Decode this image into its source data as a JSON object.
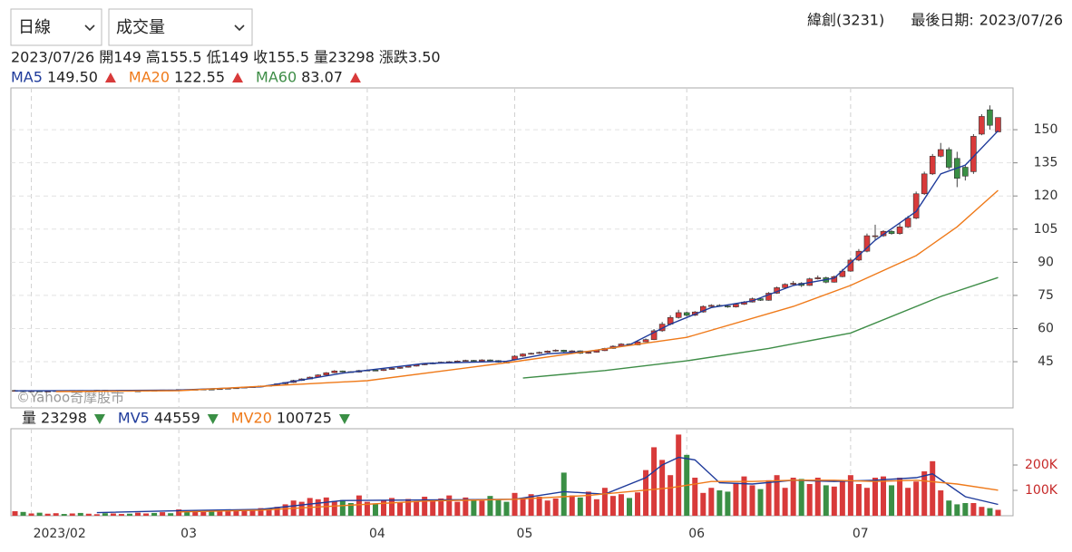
{
  "controls": {
    "period": "日線",
    "indicator": "成交量"
  },
  "header": {
    "stock": "緯創(3231)",
    "last_date_label": "最後日期:",
    "last_date": "2023/07/26"
  },
  "quote": {
    "date": "2023/07/26",
    "fields": [
      {
        "label": "開",
        "value": "149"
      },
      {
        "label": "高",
        "value": "155.5"
      },
      {
        "label": "低",
        "value": "149"
      },
      {
        "label": "收",
        "value": "155.5"
      },
      {
        "label": "量",
        "value": "23298"
      },
      {
        "label": "漲跌",
        "value": "3.50"
      }
    ]
  },
  "chart_data": [
    {
      "type": "candlestick",
      "watermark": "©Yahoo奇摩股市",
      "up_color": "#d83a3a",
      "down_color": "#3a8f45",
      "grid": true,
      "categories": [
        null,
        null,
        "2023/02",
        null,
        null,
        null,
        null,
        null,
        null,
        null,
        null,
        null,
        null,
        null,
        null,
        null,
        null,
        null,
        null,
        null,
        "03",
        null,
        null,
        null,
        null,
        null,
        null,
        null,
        null,
        null,
        null,
        null,
        null,
        null,
        null,
        null,
        null,
        null,
        null,
        null,
        null,
        null,
        null,
        "04",
        null,
        null,
        null,
        null,
        null,
        null,
        null,
        null,
        null,
        null,
        null,
        null,
        null,
        null,
        null,
        null,
        null,
        "05",
        null,
        null,
        null,
        null,
        null,
        null,
        null,
        null,
        null,
        null,
        null,
        null,
        null,
        null,
        null,
        null,
        null,
        null,
        null,
        null,
        "06",
        null,
        null,
        null,
        null,
        null,
        null,
        null,
        null,
        null,
        null,
        null,
        null,
        null,
        null,
        null,
        null,
        null,
        null,
        null,
        "07",
        null,
        null,
        null,
        null,
        null,
        null,
        null,
        null,
        null,
        null,
        null,
        null,
        null,
        null,
        null,
        null,
        null,
        null
      ],
      "open": [
        31.8,
        32,
        31.5,
        31.8,
        31.6,
        31.7,
        31.9,
        31.8,
        32,
        31.7,
        31.9,
        32.1,
        31.8,
        31.9,
        32,
        31.7,
        31.8,
        32,
        31.9,
        32.2,
        32.1,
        32.4,
        32.2,
        32.5,
        32.6,
        32.4,
        32.8,
        33,
        33.2,
        33.5,
        33.7,
        34,
        34.3,
        35,
        35.6,
        36.5,
        37.2,
        38,
        39,
        40,
        40.8,
        40.5,
        40.3,
        41,
        41.2,
        41,
        41.5,
        42,
        42.5,
        43,
        43.6,
        44,
        44.5,
        44.8,
        45,
        45.3,
        45.6,
        45.2,
        45.8,
        45.5,
        44.8,
        46,
        47.5,
        48.5,
        48.8,
        49.2,
        49.8,
        50.2,
        49.6,
        49.9,
        48.8,
        49.3,
        50,
        51,
        52,
        53,
        52.6,
        54,
        55,
        59,
        62,
        65,
        67.2,
        66,
        67.5,
        70,
        70.5,
        70.2,
        69.8,
        71,
        72,
        73.5,
        72.8,
        76,
        78.5,
        80,
        80.5,
        79.5,
        82.5,
        83,
        81,
        83.5,
        86,
        91,
        95,
        102,
        102,
        104,
        103,
        106,
        110,
        121,
        130,
        138,
        141,
        137,
        133,
        131,
        148,
        159,
        149
      ],
      "high": [
        32.2,
        32.1,
        31.9,
        31.9,
        31.8,
        32,
        32,
        32.1,
        32.1,
        32,
        32.2,
        32.2,
        32,
        32.1,
        32.1,
        31.9,
        32.1,
        32.1,
        32.3,
        32.3,
        32.5,
        32.5,
        32.6,
        32.7,
        32.7,
        32.9,
        33.1,
        33.3,
        33.6,
        33.8,
        34.2,
        34.5,
        35.2,
        35.8,
        36.8,
        37.5,
        38.3,
        39.3,
        40.3,
        41.2,
        41,
        40.7,
        41.3,
        41.5,
        41.4,
        41.7,
        42.2,
        42.8,
        43.3,
        43.9,
        44.3,
        44.8,
        45.1,
        45.3,
        45.6,
        45.9,
        45.8,
        46.1,
        46,
        45.7,
        45,
        48,
        48.8,
        49.1,
        49.6,
        50.1,
        50.6,
        50.4,
        50.2,
        50.1,
        49.6,
        50.4,
        51.3,
        52.4,
        53.4,
        53.3,
        54.4,
        55.5,
        59.8,
        63,
        66,
        68.5,
        67.6,
        67.9,
        70.5,
        71,
        71,
        70.5,
        71.4,
        72.4,
        74,
        74,
        76.5,
        79,
        80.5,
        81.5,
        81,
        83,
        84,
        83.5,
        84,
        87,
        92,
        96,
        103,
        107,
        104.5,
        104.5,
        108,
        111,
        122,
        131,
        139,
        144,
        142,
        140,
        134,
        148,
        157,
        161,
        155.5
      ],
      "low": [
        31.6,
        31.4,
        31.4,
        31.5,
        31.5,
        31.6,
        31.7,
        31.7,
        31.6,
        31.6,
        31.8,
        31.7,
        31.7,
        31.8,
        31.6,
        31.6,
        31.7,
        31.8,
        31.8,
        32,
        32,
        32.1,
        32.1,
        32.4,
        32.3,
        32.3,
        32.7,
        32.9,
        33.1,
        33.4,
        33.6,
        33.9,
        34.1,
        34.8,
        35.4,
        36.3,
        37,
        37.8,
        38.8,
        39.8,
        40.2,
        40.1,
        40.1,
        40.8,
        40.8,
        40.8,
        41.3,
        41.8,
        42.3,
        42.8,
        43.4,
        43.8,
        44.3,
        44.6,
        44.9,
        45.1,
        45,
        45,
        45.2,
        44.6,
        44.2,
        45.8,
        47.2,
        48.2,
        48.5,
        49,
        49.5,
        49.3,
        49.3,
        48.5,
        48.6,
        49.1,
        49.8,
        50.8,
        51.8,
        52.2,
        52.4,
        53.8,
        54.8,
        58.5,
        61.5,
        64.5,
        65.5,
        65.7,
        67.2,
        69.8,
        69.8,
        69.4,
        69.5,
        70.7,
        71.8,
        72.5,
        72.6,
        75.7,
        78.2,
        79.6,
        78.8,
        79.3,
        82.2,
        80.5,
        80.8,
        83.2,
        85.7,
        90.5,
        94.5,
        100,
        101.5,
        102.5,
        102.5,
        105.5,
        109.5,
        120.5,
        129.5,
        137.5,
        132,
        124,
        127,
        130,
        147.5,
        150,
        149
      ],
      "close": [
        32,
        31.5,
        31.8,
        31.6,
        31.7,
        31.9,
        31.8,
        32,
        31.7,
        31.9,
        32.1,
        31.8,
        31.9,
        32,
        31.7,
        31.8,
        32,
        31.9,
        32.2,
        32.1,
        32.4,
        32.2,
        32.5,
        32.6,
        32.4,
        32.8,
        33,
        33.2,
        33.5,
        33.7,
        34,
        34.3,
        35,
        35.6,
        36.5,
        37.2,
        38,
        39,
        40,
        40.8,
        40.5,
        40.3,
        41,
        41.2,
        41,
        41.5,
        42,
        42.5,
        43,
        43.6,
        44,
        44.5,
        44.8,
        45,
        45.3,
        45.6,
        45.2,
        45.8,
        45.5,
        44.8,
        44.5,
        47.5,
        48.5,
        48.8,
        49.2,
        49.8,
        50.2,
        49.6,
        49.9,
        48.8,
        49.3,
        50,
        51,
        52,
        53,
        52.6,
        54,
        55,
        59,
        62,
        65,
        67.2,
        66,
        67.5,
        70,
        70.5,
        70.2,
        69.8,
        71,
        72,
        73.5,
        72.8,
        76,
        78.5,
        80,
        80.5,
        79.5,
        82.5,
        83,
        81,
        83.5,
        86,
        91,
        95,
        102,
        102,
        104,
        103,
        106,
        110,
        121,
        130,
        138,
        141,
        133,
        128,
        129,
        147,
        156,
        152,
        155.5
      ],
      "ylim": [
        24.1,
        168.9
      ],
      "yticks": [
        45,
        60,
        75,
        90,
        105,
        120,
        135,
        150
      ],
      "series": [
        {
          "name": "MA5",
          "color": "#1f3b9b",
          "last_label": "149.50",
          "x": [
            0,
            10,
            20,
            30,
            40,
            50,
            60,
            65,
            70,
            75,
            80,
            85,
            90,
            95,
            100,
            105,
            110,
            113,
            116,
            120
          ],
          "values": [
            31.8,
            31.9,
            32.2,
            33.6,
            39.8,
            44.2,
            45.2,
            48.6,
            49.6,
            52.6,
            62,
            69.5,
            72.5,
            79.5,
            82.8,
            100,
            113,
            130,
            134,
            149.5
          ]
        },
        {
          "name": "MA20",
          "color": "#ef7a1a",
          "last_label": "122.55",
          "x": [
            5,
            20,
            43,
            61,
            82,
            95,
            102,
            110,
            115,
            120
          ],
          "values": [
            31.5,
            31.9,
            36.4,
            45,
            56,
            70,
            79.5,
            93,
            106,
            122.55
          ]
        },
        {
          "name": "MA60",
          "color": "#3e8d47",
          "last_label": "83.07",
          "x": [
            62,
            72,
            82,
            92,
            102,
            113,
            120
          ],
          "values": [
            37.6,
            41,
            45.4,
            51,
            58,
            74.5,
            83.07
          ]
        }
      ]
    },
    {
      "type": "bar",
      "legend_name": "量",
      "ylim": [
        0,
        343000
      ],
      "yticks": [
        {
          "value": 100000,
          "label": "100K"
        },
        {
          "value": 200000,
          "label": "200K"
        }
      ],
      "values": [
        18000,
        15000,
        9000,
        12000,
        8000,
        10000,
        7000,
        9000,
        11000,
        8000,
        6000,
        10000,
        9000,
        7000,
        8000,
        12000,
        9000,
        11000,
        14000,
        10000,
        25000,
        18000,
        22000,
        15000,
        20000,
        17000,
        19000,
        24000,
        22000,
        26000,
        30000,
        28000,
        35000,
        45000,
        60000,
        55000,
        70000,
        65000,
        72000,
        58000,
        62000,
        50000,
        80000,
        55000,
        48000,
        62000,
        70000,
        52000,
        66000,
        58000,
        75000,
        60000,
        68000,
        80000,
        55000,
        72000,
        65000,
        60000,
        78000,
        62000,
        55000,
        90000,
        70000,
        85000,
        75000,
        60000,
        68000,
        170000,
        80000,
        72000,
        95000,
        65000,
        110000,
        78000,
        85000,
        70000,
        92000,
        180000,
        270000,
        220000,
        160000,
        320000,
        240000,
        150000,
        90000,
        110000,
        100000,
        95000,
        130000,
        155000,
        120000,
        105000,
        140000,
        160000,
        110000,
        150000,
        145000,
        125000,
        150000,
        120000,
        115000,
        135000,
        160000,
        125000,
        110000,
        150000,
        155000,
        120000,
        150000,
        110000,
        135000,
        175000,
        215000,
        100000,
        60000,
        45000,
        50000,
        50000,
        35000,
        30000,
        23298
      ],
      "series": [
        {
          "name": "MV5",
          "color": "#1f3b9b",
          "x": [
            10,
            20,
            30,
            40,
            50,
            61,
            67,
            72,
            77,
            79,
            81,
            83,
            86,
            90,
            95,
            100,
            105,
            110,
            112,
            116,
            120
          ],
          "values": [
            12000,
            20000,
            25000,
            60000,
            62000,
            65000,
            95000,
            85000,
            150000,
            200000,
            230000,
            220000,
            130000,
            125000,
            140000,
            135000,
            140000,
            150000,
            165000,
            75000,
            44559
          ]
        },
        {
          "name": "MV20",
          "color": "#ef7a1a",
          "x": [
            20,
            30,
            40,
            50,
            61,
            70,
            80,
            85,
            90,
            95,
            100,
            105,
            110,
            115,
            120
          ],
          "values": [
            15000,
            22000,
            40000,
            58000,
            65000,
            80000,
            110000,
            135000,
            135000,
            140000,
            140000,
            135000,
            140000,
            125000,
            100725
          ]
        }
      ]
    }
  ]
}
